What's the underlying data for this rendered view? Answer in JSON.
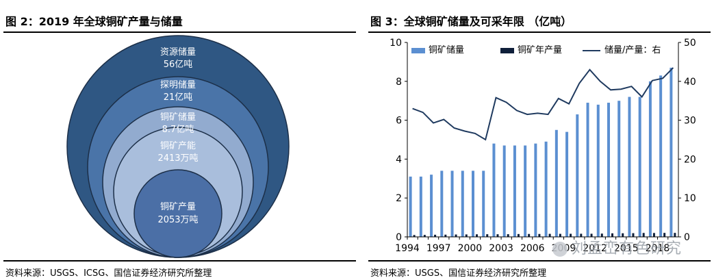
{
  "left": {
    "title": "图 2：2019 年全球铜矿产量与储量",
    "source": "资料来源：USGS、ICSG、国信证券经济研究所整理",
    "circles": [
      {
        "line1": "资源储量",
        "line2": "56亿吨",
        "color": "#2f5783"
      },
      {
        "line1": "探明储量",
        "line2": "21亿吨",
        "color": "#4a74a8"
      },
      {
        "line1": "铜矿储量",
        "line2": "8.7亿吨",
        "color": "#92abcf"
      },
      {
        "line1": "铜矿产能",
        "line2": "2413万吨",
        "color": "#a9bedc"
      },
      {
        "line1": "铜矿产量",
        "line2": "2053万吨",
        "color": "#4b6fa6"
      }
    ]
  },
  "right": {
    "title": "图 3：全球铜矿储量及可采年限 （亿吨）",
    "source": "资料来源：USGS、国信证券经济研究所整理",
    "watermark": "刘孟峦有色研究"
  },
  "chart_data": {
    "type": "bar",
    "title": "全球铜矿储量及可采年限 （亿吨）",
    "x": [
      1994,
      1995,
      1996,
      1997,
      1998,
      1999,
      2000,
      2001,
      2002,
      2003,
      2004,
      2005,
      2006,
      2007,
      2008,
      2009,
      2010,
      2011,
      2012,
      2013,
      2014,
      2015,
      2016,
      2017,
      2018,
      2019
    ],
    "x_tick_labels": [
      "1994",
      "1997",
      "2000",
      "2003",
      "2006",
      "2009",
      "2012",
      "2015",
      "2018"
    ],
    "series": [
      {
        "name": "铜矿储量",
        "kind": "bar",
        "axis": "left",
        "color": "#5b8fd1",
        "values": [
          3.1,
          3.1,
          3.2,
          3.4,
          3.4,
          3.4,
          3.4,
          3.4,
          4.8,
          4.7,
          4.7,
          4.7,
          4.8,
          4.9,
          5.5,
          5.4,
          6.3,
          6.9,
          6.8,
          6.9,
          7.0,
          7.2,
          7.2,
          8.0,
          8.3,
          8.7
        ]
      },
      {
        "name": "铜矿年产量",
        "kind": "bar",
        "axis": "left",
        "color": "#0f1f3a",
        "values": [
          0.096,
          0.101,
          0.11,
          0.114,
          0.122,
          0.126,
          0.132,
          0.136,
          0.135,
          0.138,
          0.147,
          0.15,
          0.15,
          0.156,
          0.156,
          0.159,
          0.161,
          0.161,
          0.169,
          0.183,
          0.186,
          0.191,
          0.203,
          0.2,
          0.205,
          0.205
        ]
      },
      {
        "name": "储量/产量：右",
        "kind": "line",
        "axis": "right",
        "color": "#1f3a5f",
        "values": [
          33,
          32,
          29.3,
          30.2,
          28,
          27.2,
          26.6,
          25,
          35.8,
          34.6,
          32.5,
          31.5,
          31.8,
          31.5,
          35.6,
          34.2,
          39.5,
          43,
          40,
          37.8,
          38,
          38.7,
          36,
          40.2,
          40.8,
          43.5
        ]
      }
    ],
    "ylim_left": [
      0,
      10
    ],
    "yticks_left": [
      0,
      2,
      4,
      6,
      8,
      10
    ],
    "ylim_right": [
      0,
      50
    ],
    "yticks_right": [
      0,
      10,
      20,
      30,
      40,
      50
    ],
    "legend_position": "top",
    "grid": false
  }
}
